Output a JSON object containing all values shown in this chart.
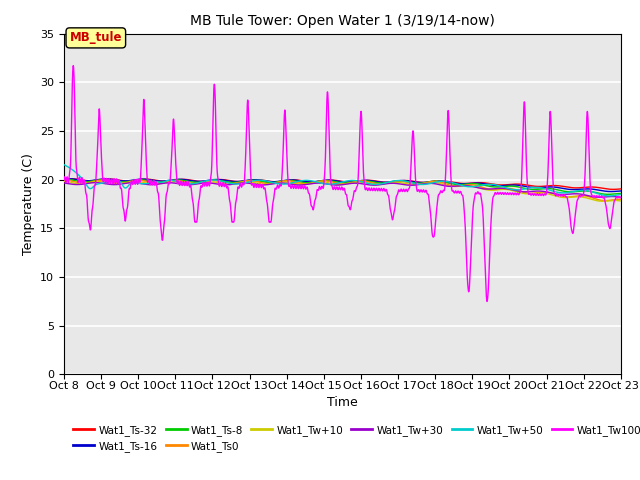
{
  "title": "MB Tule Tower: Open Water 1 (3/19/14-now)",
  "xlabel": "Time",
  "ylabel": "Temperature (C)",
  "ylim": [
    0,
    35
  ],
  "yticks": [
    0,
    5,
    10,
    15,
    20,
    25,
    30,
    35
  ],
  "xlim": [
    0,
    15
  ],
  "xtick_labels": [
    "Oct 8",
    "Oct 9",
    "Oct 10",
    "Oct 11",
    "Oct 12",
    "Oct 13",
    "Oct 14",
    "Oct 15",
    "Oct 16",
    "Oct 17",
    "Oct 18",
    "Oct 19",
    "Oct 20",
    "Oct 21",
    "Oct 22",
    "Oct 23"
  ],
  "legend_label": "MB_tule",
  "series_labels": [
    "Wat1_Ts-32",
    "Wat1_Ts-16",
    "Wat1_Ts-8",
    "Wat1_Ts0",
    "Wat1_Tw+10",
    "Wat1_Tw+30",
    "Wat1_Tw+50",
    "Wat1_Tw100"
  ],
  "series_colors": [
    "#ff0000",
    "#0000cc",
    "#00cc00",
    "#ff8800",
    "#cccc00",
    "#9900cc",
    "#00cccc",
    "#ff00ff"
  ],
  "background_color": "#ffffff",
  "plot_bg_color": "#e8e8e8",
  "grid_color": "#ffffff",
  "annotation_box_color": "#ffff99",
  "annotation_text_color": "#cc0000"
}
